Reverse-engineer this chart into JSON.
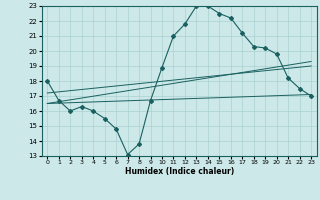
{
  "xlabel": "Humidex (Indice chaleur)",
  "ylabel": "",
  "bg_color": "#cce8e8",
  "grid_color": "#aad0d0",
  "line_color": "#1a6060",
  "xlim": [
    -0.5,
    23.5
  ],
  "ylim": [
    13,
    23
  ],
  "xticks": [
    0,
    1,
    2,
    3,
    4,
    5,
    6,
    7,
    8,
    9,
    10,
    11,
    12,
    13,
    14,
    15,
    16,
    17,
    18,
    19,
    20,
    21,
    22,
    23
  ],
  "yticks": [
    13,
    14,
    15,
    16,
    17,
    18,
    19,
    20,
    21,
    22,
    23
  ],
  "curve1_x": [
    0,
    1,
    2,
    3,
    4,
    5,
    6,
    7,
    8,
    9,
    10,
    11,
    12,
    13,
    14,
    15,
    16,
    17,
    18,
    19,
    20,
    21,
    22,
    23
  ],
  "curve1_y": [
    18.0,
    16.7,
    16.0,
    16.3,
    16.0,
    15.5,
    14.8,
    13.1,
    13.8,
    16.7,
    18.9,
    21.0,
    21.8,
    23.0,
    23.0,
    22.5,
    22.2,
    21.2,
    20.3,
    20.2,
    19.8,
    18.2,
    17.5,
    17.0
  ],
  "line2_x": [
    0,
    23
  ],
  "line2_y": [
    16.5,
    17.1
  ],
  "line3_x": [
    0,
    23
  ],
  "line3_y": [
    16.5,
    19.3
  ],
  "line4_x": [
    0,
    23
  ],
  "line4_y": [
    17.2,
    19.0
  ]
}
